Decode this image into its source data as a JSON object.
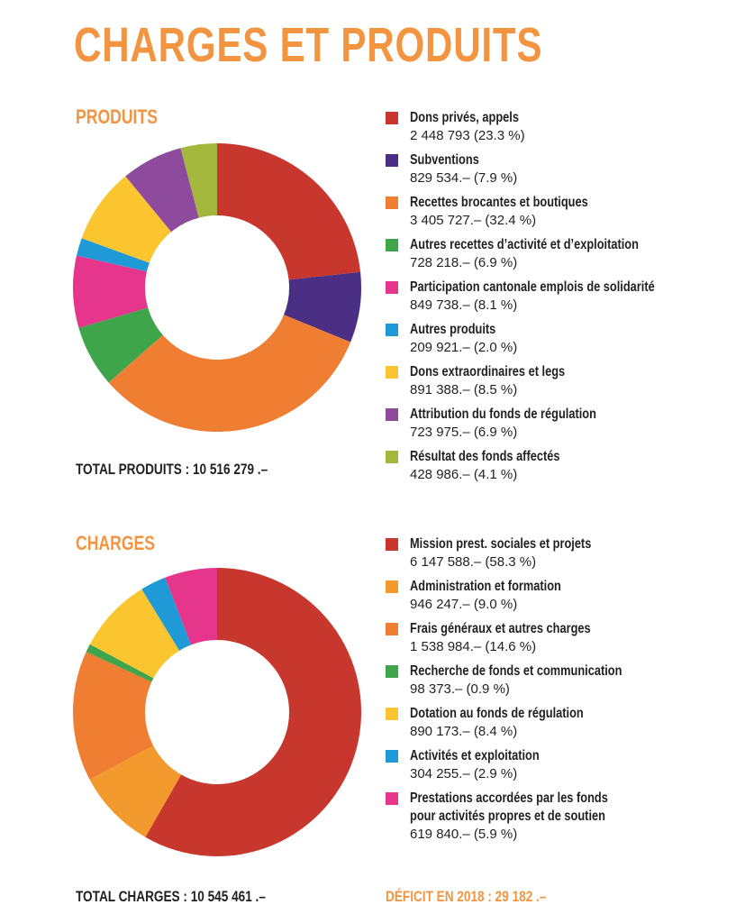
{
  "title": "CHARGES ET PRODUITS",
  "produits": {
    "section_label": "PRODUITS",
    "total": "TOTAL PRODUITS : 10 516 279 .–"
  },
  "charges": {
    "section_label": "CHARGES",
    "total": "TOTAL CHARGES : 10 545 461 .–",
    "deficit": "DÉFICIT EN 2018 : 29 182 .–"
  },
  "chart_data": [
    {
      "type": "pie",
      "donut": true,
      "title": "PRODUITS",
      "slices": [
        {
          "label": "Dons privés, appels",
          "value_text": "2 448 793 (23.3 %)",
          "value": 2448793,
          "percent": 23.3,
          "color": "#c8372d"
        },
        {
          "label": "Subventions",
          "value_text": "829 534.– (7.9 %)",
          "value": 829534,
          "percent": 7.9,
          "color": "#4a2f84"
        },
        {
          "label": "Recettes brocantes et boutiques",
          "value_text": "3 405 727.– (32.4 %)",
          "value": 3405727,
          "percent": 32.4,
          "color": "#ef7d32"
        },
        {
          "label": "Autres recettes d’activité et d’exploitation",
          "value_text": "728 218.– (6.9 %)",
          "value": 728218,
          "percent": 6.9,
          "color": "#3ea54a"
        },
        {
          "label": "Participation cantonale emplois de solidarité",
          "value_text": "849 738.– (8.1 %)",
          "value": 849738,
          "percent": 8.1,
          "color": "#e5368c"
        },
        {
          "label": "Autres produits",
          "value_text": "209 921.– (2.0 %)",
          "value": 209921,
          "percent": 2.0,
          "color": "#1f9ad6"
        },
        {
          "label": "Dons extraordinaires et legs",
          "value_text": "891 388.– (8.5 %)",
          "value": 891388,
          "percent": 8.5,
          "color": "#fbc530"
        },
        {
          "label": "Attribution du fonds de régulation",
          "value_text": "723 975.– (6.9 %)",
          "value": 723975,
          "percent": 6.9,
          "color": "#8e4b9e"
        },
        {
          "label": "Résultat des fonds affectés",
          "value_text": "428 986.– (4.1 %)",
          "value": 428986,
          "percent": 4.1,
          "color": "#a3b73c"
        }
      ]
    },
    {
      "type": "pie",
      "donut": true,
      "title": "CHARGES",
      "slices": [
        {
          "label": "Mission prest. sociales et projets",
          "value_text": "6 147 588.– (58.3 %)",
          "value": 6147588,
          "percent": 58.3,
          "color": "#c8372d"
        },
        {
          "label": "Administration et formation",
          "value_text": "946 247.– (9.0 %)",
          "value": 946247,
          "percent": 9.0,
          "color": "#f29a2e"
        },
        {
          "label": "Frais généraux et autres charges",
          "value_text": "1 538 984.– (14.6 %)",
          "value": 1538984,
          "percent": 14.6,
          "color": "#ef7d32"
        },
        {
          "label": "Recherche de fonds et communication",
          "value_text": "98 373.– (0.9 %)",
          "value": 98373,
          "percent": 0.9,
          "color": "#3ea54a"
        },
        {
          "label": "Dotation au fonds de régulation",
          "value_text": "890 173.– (8.4 %)",
          "value": 890173,
          "percent": 8.4,
          "color": "#fbc530"
        },
        {
          "label": "Activités et exploitation",
          "value_text": "304 255.– (2.9 %)",
          "value": 304255,
          "percent": 2.9,
          "color": "#1f9ad6"
        },
        {
          "label": "Prestations accordées par les fonds pour activités propres et de soutien",
          "value_text": "619 840.– (5.9 %)",
          "value": 619840,
          "percent": 5.9,
          "color": "#e5368c"
        }
      ]
    }
  ]
}
